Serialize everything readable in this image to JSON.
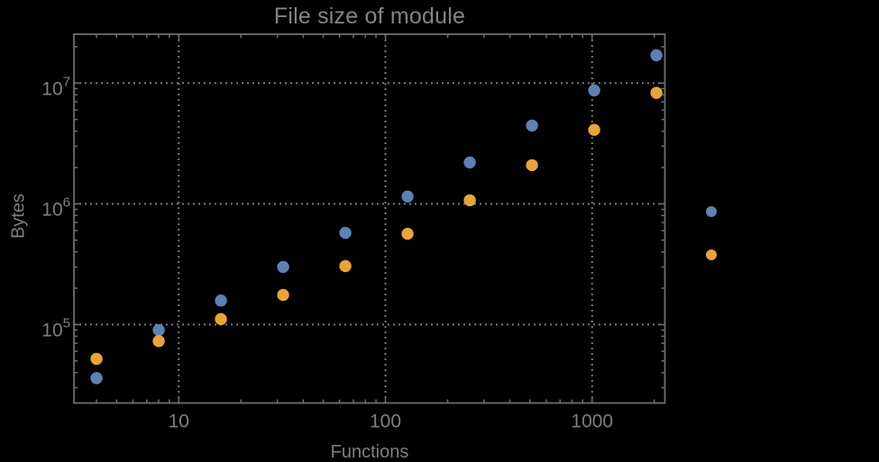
{
  "chart_data": {
    "type": "scatter",
    "title": "File size of module",
    "xlabel": "Functions",
    "ylabel": "Bytes",
    "x_scale": "log",
    "y_scale": "log",
    "grid": true,
    "legend_position": "right-outside",
    "xlim": [
      3.11,
      2250
    ],
    "ylim": [
      22400,
      25400000
    ],
    "x_ticks": [
      10,
      100,
      1000
    ],
    "x_tick_labels": [
      "10",
      "100",
      "1000"
    ],
    "y_ticks": [
      100000,
      1000000,
      10000000
    ],
    "y_tick_labels": [
      {
        "base": "10",
        "exp": "5"
      },
      {
        "base": "10",
        "exp": "6"
      },
      {
        "base": "10",
        "exp": "7"
      }
    ],
    "x": [
      4,
      8,
      16,
      32,
      64,
      128,
      256,
      512,
      1024,
      2048
    ],
    "series": [
      {
        "name": "blue",
        "color": "#5E81B5",
        "values": [
          36000,
          90000,
          158000,
          300000,
          575000,
          1150000,
          2200000,
          4450000,
          8700000,
          17000000
        ]
      },
      {
        "name": "orange",
        "color": "#E8A33D",
        "values": [
          52000,
          73000,
          111000,
          176000,
          305000,
          565000,
          1070000,
          2090000,
          4100000,
          8300000
        ]
      }
    ],
    "legend_markers": [
      {
        "series": "blue",
        "color": "#5E81B5"
      },
      {
        "series": "orange",
        "color": "#E8A33D"
      }
    ]
  },
  "colors": {
    "background": "#000000",
    "frame": "#6E6E6E",
    "grid": "#7A7A7A",
    "text": "#7F7F7F",
    "title_text": "#848484"
  }
}
